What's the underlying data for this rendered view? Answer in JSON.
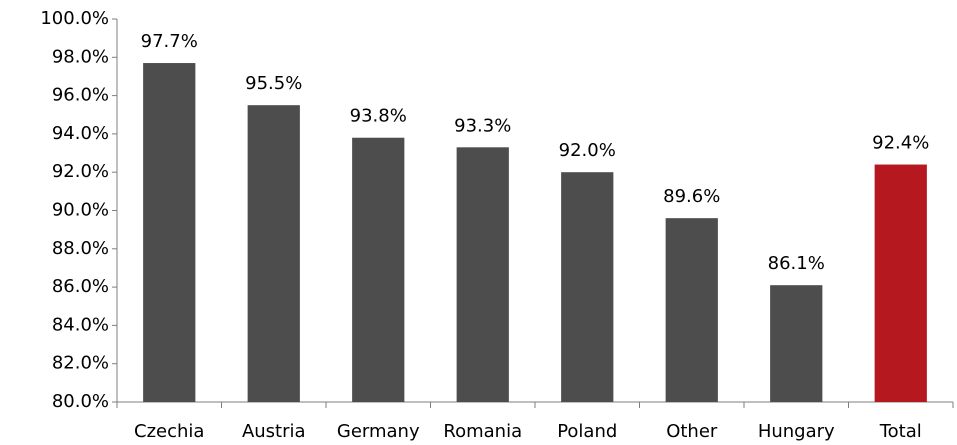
{
  "chart_data": {
    "type": "bar",
    "categories": [
      "Czechia",
      "Austria",
      "Germany",
      "Romania",
      "Poland",
      "Other",
      "Hungary",
      "Total"
    ],
    "values": [
      97.7,
      95.5,
      93.8,
      93.3,
      92.0,
      89.6,
      86.1,
      92.4
    ],
    "value_labels": [
      "97.7%",
      "95.5%",
      "93.8%",
      "93.3%",
      "92.0%",
      "89.6%",
      "86.1%",
      "92.4%"
    ],
    "colors": [
      "#4d4d4d",
      "#4d4d4d",
      "#4d4d4d",
      "#4d4d4d",
      "#4d4d4d",
      "#4d4d4d",
      "#4d4d4d",
      "#b5191f"
    ],
    "ylim": [
      80,
      100
    ],
    "yticks": [
      {
        "value": 80,
        "label": "80.0%"
      },
      {
        "value": 82,
        "label": "82.0%"
      },
      {
        "value": 84,
        "label": "84.0%"
      },
      {
        "value": 86,
        "label": "86.0%"
      },
      {
        "value": 88,
        "label": "88.0%"
      },
      {
        "value": 90,
        "label": "90.0%"
      },
      {
        "value": 92,
        "label": "92.0%"
      },
      {
        "value": 94,
        "label": "94.0%"
      },
      {
        "value": 96,
        "label": "96.0%"
      },
      {
        "value": 98,
        "label": "98.0%"
      },
      {
        "value": 100,
        "label": "100.0%"
      }
    ],
    "grid": false
  }
}
